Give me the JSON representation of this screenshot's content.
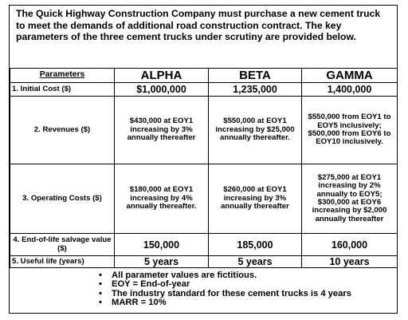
{
  "intro": "The Quick Highway Construction Company must purchase a new cement truck to meet the demands of additional road construction contract. The key parameters of the three cement trucks under scrutiny are provided below.",
  "table": {
    "header": {
      "parameters": "Parameters",
      "alpha": "ALPHA",
      "beta": "BETA",
      "gamma": "GAMMA"
    },
    "rows": [
      {
        "label": "1.  Initial Cost ($)",
        "alpha": "$1,000,000",
        "beta": "1,235,000",
        "gamma": "1,400,000"
      },
      {
        "label": "2.  Revenues ($)",
        "alpha": "$430,000 at EOY1 increasing by 3% annually thereafter",
        "beta": "$550,000 at EOY1 increasing by $25,000 annually thereafter.",
        "gamma": "$550,000 from EOY1 to EOY5 inclusively; $500,000 from EOY6 to EOY10 inclusively."
      },
      {
        "label": "3.  Operating Costs ($)",
        "alpha": "$180,000 at EOY1 increasing by 4% annually thereafter.",
        "beta": "$260,000 at EOY1 increasing by 3% annually thereafter",
        "gamma": "$275,000 at EOY1 increasing by 2% annually to EOY5; $300,000 at EOY6 increasing by $2,000 annually thereafter"
      },
      {
        "label": "4.  End-of-life salvage value ($)",
        "alpha": "150,000",
        "beta": "185,000",
        "gamma": "160,000"
      },
      {
        "label": "5.  Useful life (years)",
        "alpha": "5 years",
        "beta": "5 years",
        "gamma": "10 years"
      }
    ]
  },
  "notes": [
    "All parameter values are fictitious.",
    "EOY = End-of-year",
    "The industry standard for these cement trucks is 4 years",
    "MARR = 10%"
  ]
}
